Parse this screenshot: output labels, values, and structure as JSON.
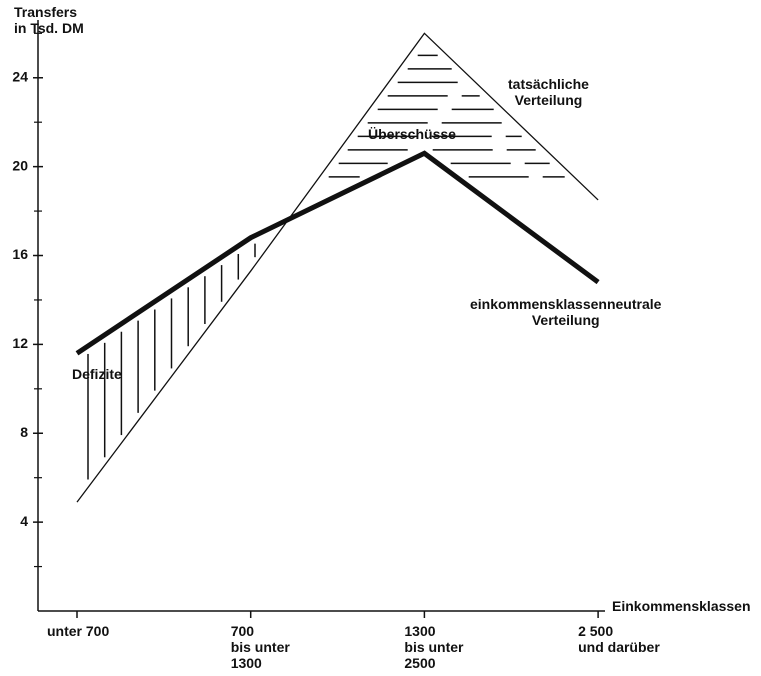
{
  "chart_data": {
    "type": "line",
    "y_axis_label": "Transfers\nin Tsd. DM",
    "x_axis_label": "Einkommensklassen",
    "categories": [
      "unter 700",
      "700\nbis unter\n1300",
      "1300\nbis unter\n2500",
      "2 500\nund darüber"
    ],
    "series": [
      {
        "name": "einkommensklassenneutrale\nVerteilung",
        "color": "#111111",
        "values": [
          11.6,
          16.8,
          20.6,
          14.8
        ]
      },
      {
        "name": "tatsächliche\nVerteilung",
        "color": "#111111",
        "values": [
          4.9,
          15.3,
          26.0,
          18.5
        ]
      }
    ],
    "annotations": [
      "Defizite",
      "Überschüsse"
    ],
    "ylim": [
      0,
      26.6
    ],
    "yticks": [
      4,
      8,
      12,
      16,
      20,
      24
    ],
    "yminorticks": [
      2,
      6,
      10,
      14,
      18,
      22,
      26
    ]
  }
}
